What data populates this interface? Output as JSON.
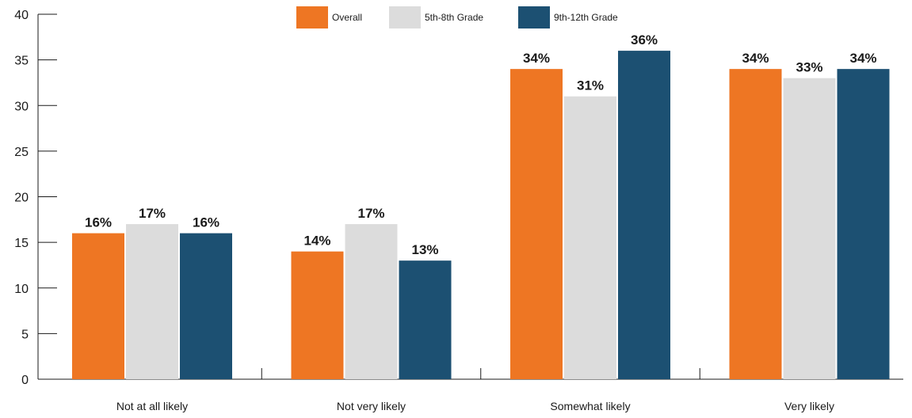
{
  "chart_data": {
    "type": "bar",
    "categories": [
      "Not at all likely",
      "Not very likely",
      "Somewhat likely",
      "Very likely"
    ],
    "series": [
      {
        "name": "Overall",
        "color": "#ee7623",
        "values": [
          16,
          14,
          34,
          34
        ],
        "labels": [
          "16%",
          "14%",
          "34%",
          "34%"
        ]
      },
      {
        "name": "5th-8th Grade",
        "color": "#dcdcdc",
        "values": [
          17,
          17,
          31,
          33
        ],
        "labels": [
          "17%",
          "17%",
          "31%",
          "33%"
        ]
      },
      {
        "name": "9th-12th Grade",
        "color": "#1c5072",
        "values": [
          16,
          13,
          36,
          34
        ],
        "labels": [
          "16%",
          "13%",
          "36%",
          "34%"
        ]
      }
    ],
    "ylim": [
      0,
      40
    ],
    "yticks": [
      0,
      5,
      10,
      15,
      20,
      25,
      30,
      35,
      40
    ],
    "ytick_labels": [
      "0",
      "5",
      "10",
      "15",
      "20",
      "25",
      "30",
      "35",
      "40"
    ],
    "grid": false,
    "legend": "top-center",
    "title": "",
    "xlabel": "",
    "ylabel": ""
  }
}
